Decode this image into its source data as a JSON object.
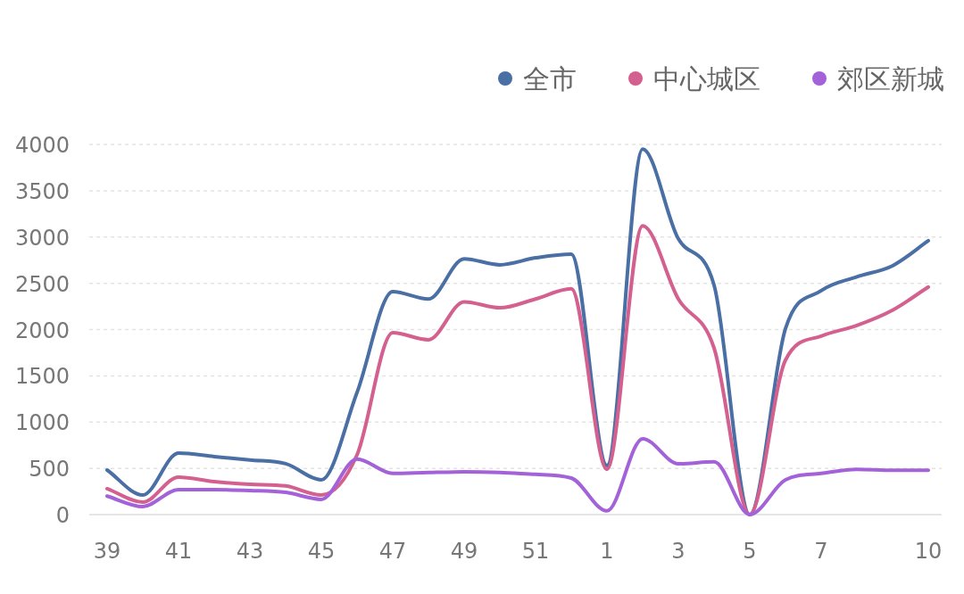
{
  "chart_data": {
    "type": "line",
    "categories": [
      "39",
      null,
      "41",
      null,
      "43",
      null,
      "45",
      null,
      "47",
      null,
      "49",
      null,
      "51",
      null,
      "1",
      null,
      "3",
      null,
      "5",
      null,
      "7",
      null,
      null,
      "10"
    ],
    "series": [
      {
        "name": "全市",
        "color": "#4a6fa5",
        "values": [
          482,
          212,
          665,
          627,
          590,
          550,
          376,
          1320,
          2410,
          2330,
          2765,
          2700,
          2775,
          2815,
          530,
          3950,
          2980,
          2480,
          0,
          2010,
          2420,
          2570,
          2690,
          2960
        ]
      },
      {
        "name": "中心城区",
        "color": "#d3608e",
        "values": [
          280,
          135,
          405,
          357,
          328,
          310,
          212,
          646,
          1966,
          1890,
          2300,
          2235,
          2330,
          2440,
          490,
          3120,
          2330,
          1800,
          0,
          1670,
          1930,
          2045,
          2210,
          2460
        ]
      },
      {
        "name": "郊区新城",
        "color": "#a362d8",
        "values": [
          200,
          87,
          270,
          270,
          260,
          240,
          165,
          600,
          445,
          455,
          462,
          455,
          435,
          395,
          40,
          820,
          550,
          570,
          0,
          375,
          445,
          490,
          480,
          480
        ]
      }
    ],
    "ylim": [
      0,
      4000
    ],
    "yticks": [
      0,
      500,
      1000,
      1500,
      2000,
      2500,
      3000,
      3500,
      4000
    ],
    "grid": "y",
    "legend": "top right"
  }
}
